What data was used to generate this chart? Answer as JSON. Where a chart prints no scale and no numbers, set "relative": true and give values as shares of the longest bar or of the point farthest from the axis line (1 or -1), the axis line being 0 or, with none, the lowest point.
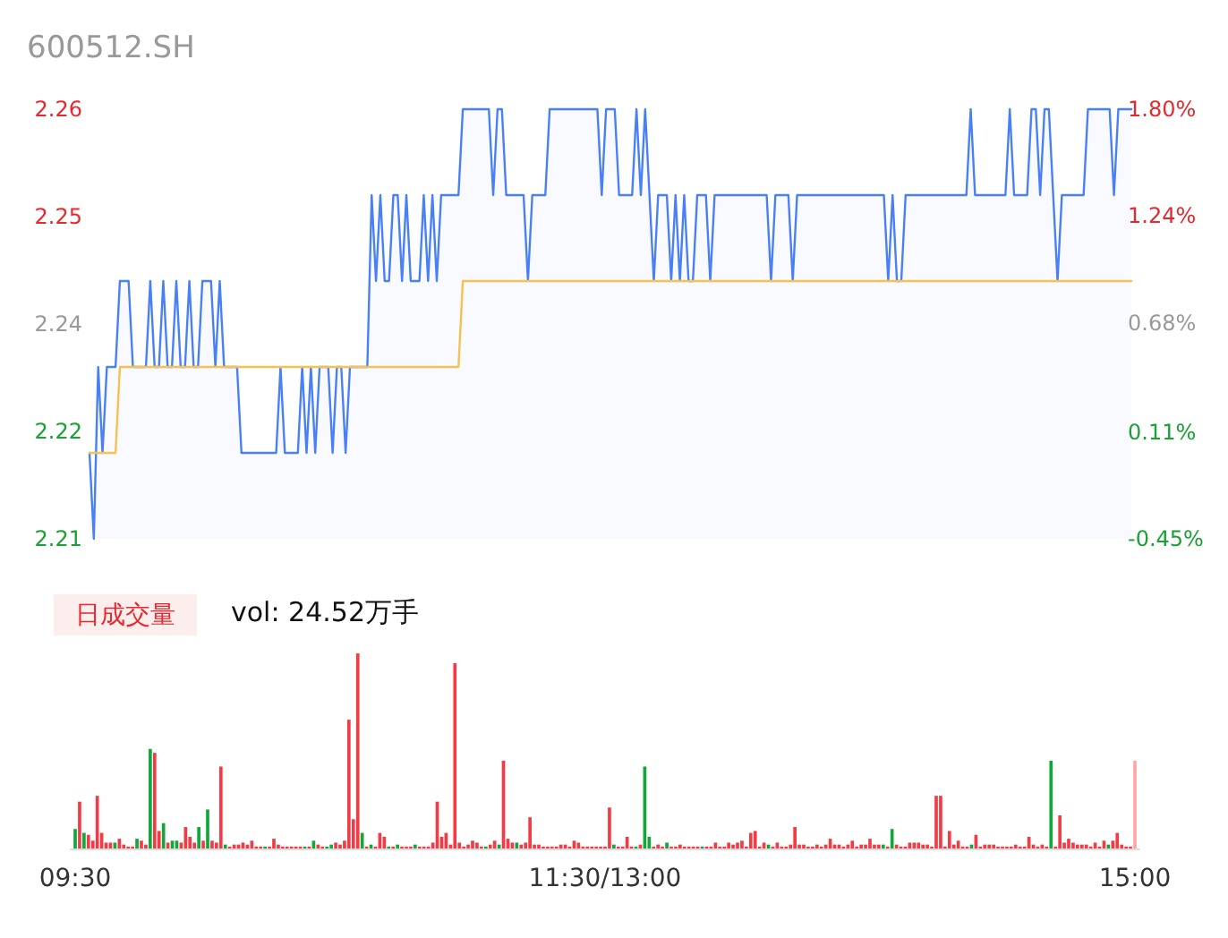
{
  "chart_data": [
    {
      "type": "area",
      "subtitle": "600512.SH",
      "ylim": [
        2.21,
        2.26
      ],
      "categories": [
        null,
        null,
        null,
        null,
        null,
        null,
        null,
        null,
        null,
        null,
        null,
        null,
        null,
        null,
        null,
        null,
        null,
        null,
        null,
        null,
        null,
        null,
        null,
        null,
        null,
        null,
        null,
        null,
        null,
        null,
        null,
        null,
        null,
        null,
        null,
        null,
        null,
        null,
        null,
        null,
        null,
        null,
        null,
        null,
        null,
        null,
        null,
        null,
        null,
        null,
        null,
        null,
        null,
        null,
        null,
        null,
        null,
        null,
        null,
        null,
        null,
        null,
        null,
        null,
        null,
        null,
        null,
        null,
        null,
        null,
        null,
        null,
        null,
        null,
        null,
        null,
        null,
        null,
        null,
        null,
        null,
        null,
        null,
        null,
        null,
        null,
        null,
        null,
        null,
        null,
        null,
        null,
        null,
        null,
        null,
        null,
        null,
        null,
        null,
        null,
        null,
        null,
        null,
        null,
        null,
        null,
        null,
        null,
        null,
        null,
        null,
        null,
        null,
        null,
        null,
        null,
        null,
        null,
        null,
        null,
        null,
        null,
        null,
        null,
        null,
        null,
        null,
        null,
        null,
        null,
        null,
        null,
        null,
        null,
        null,
        null,
        null,
        null,
        null,
        null,
        null,
        null,
        null,
        null,
        null,
        null,
        null,
        null,
        null,
        null,
        null,
        null,
        null,
        null,
        null,
        null,
        null,
        null,
        null,
        null,
        null,
        null,
        null,
        null,
        null,
        null,
        null,
        null,
        null,
        null,
        null,
        null,
        null,
        null,
        null,
        null,
        null,
        null,
        null,
        null,
        null,
        null,
        null,
        null,
        null,
        null,
        null,
        null,
        null,
        null,
        null,
        null,
        null,
        null,
        null,
        null,
        null,
        null,
        null,
        null,
        null,
        null,
        null,
        null,
        null,
        null,
        null,
        null,
        null,
        null,
        null,
        null,
        null,
        null,
        null,
        null,
        null,
        null,
        null,
        null,
        null,
        null,
        null,
        null,
        null,
        null,
        null,
        null,
        null,
        null,
        null,
        null,
        null,
        null,
        null,
        null,
        null,
        null,
        null,
        null,
        null
      ],
      "yticks": [
        {
          "value": 2.21,
          "label": "2.21"
        },
        {
          "value": 2.2225,
          "label": "2.22"
        },
        {
          "value": 2.235,
          "label": "2.24"
        },
        {
          "value": 2.2475,
          "label": "2.25"
        },
        {
          "value": 2.26,
          "label": "2.26"
        }
      ],
      "y2lim": [
        -0.45,
        1.8
      ],
      "y2ticks": [
        {
          "value": -0.45,
          "label": "-0.45%"
        },
        {
          "value": 0.11,
          "label": "0.11%"
        },
        {
          "value": 0.68,
          "label": "0.68%"
        },
        {
          "value": 1.24,
          "label": "1.24%"
        },
        {
          "value": 1.8,
          "label": "1.80%"
        }
      ],
      "series": [
        {
          "type": "area",
          "color": "#4a80f5",
          "values": [
            2.22,
            2.21,
            2.23,
            2.22,
            2.23,
            2.23,
            2.23,
            2.24,
            2.24,
            2.24,
            2.23,
            2.23,
            2.23,
            2.23,
            2.24,
            2.23,
            2.23,
            2.24,
            2.23,
            2.23,
            2.24,
            2.23,
            2.23,
            2.24,
            2.23,
            2.23,
            2.24,
            2.24,
            2.24,
            2.23,
            2.24,
            2.23,
            2.23,
            2.23,
            2.23,
            2.22,
            2.22,
            2.22,
            2.22,
            2.22,
            2.22,
            2.22,
            2.22,
            2.22,
            2.23,
            2.22,
            2.22,
            2.22,
            2.22,
            2.23,
            2.22,
            2.23,
            2.22,
            2.23,
            2.23,
            2.23,
            2.22,
            2.23,
            2.23,
            2.22,
            2.23,
            2.23,
            2.23,
            2.23,
            2.23,
            2.25,
            2.24,
            2.25,
            2.24,
            2.24,
            2.25,
            2.25,
            2.24,
            2.25,
            2.24,
            2.24,
            2.24,
            2.25,
            2.24,
            2.25,
            2.24,
            2.25,
            2.25,
            2.25,
            2.25,
            2.25,
            2.26,
            2.26,
            2.26,
            2.26,
            2.26,
            2.26,
            2.26,
            2.25,
            2.26,
            2.26,
            2.25,
            2.25,
            2.25,
            2.25,
            2.25,
            2.24,
            2.25,
            2.25,
            2.25,
            2.25,
            2.26,
            2.26,
            2.26,
            2.26,
            2.26,
            2.26,
            2.26,
            2.26,
            2.26,
            2.26,
            2.26,
            2.26,
            2.25,
            2.26,
            2.26,
            2.26,
            2.25,
            2.25,
            2.25,
            2.25,
            2.26,
            2.25,
            2.26,
            2.25,
            2.24,
            2.25,
            2.25,
            2.25,
            2.24,
            2.25,
            2.24,
            2.25,
            2.24,
            2.24,
            2.25,
            2.25,
            2.25,
            2.24,
            2.25,
            2.25,
            2.25,
            2.25,
            2.25,
            2.25,
            2.25,
            2.25,
            2.25,
            2.25,
            2.25,
            2.25,
            2.25,
            2.24,
            2.25,
            2.25,
            2.25,
            2.25,
            2.24,
            2.25,
            2.25,
            2.25,
            2.25,
            2.25,
            2.25,
            2.25,
            2.25,
            2.25,
            2.25,
            2.25,
            2.25,
            2.25,
            2.25,
            2.25,
            2.25,
            2.25,
            2.25,
            2.25,
            2.25,
            2.25,
            2.24,
            2.25,
            2.24,
            2.24,
            2.25,
            2.25,
            2.25,
            2.25,
            2.25,
            2.25,
            2.25,
            2.25,
            2.25,
            2.25,
            2.25,
            2.25,
            2.25,
            2.25,
            2.25,
            2.26,
            2.25,
            2.25,
            2.25,
            2.25,
            2.25,
            2.25,
            2.25,
            2.25,
            2.26,
            2.25,
            2.25,
            2.25,
            2.25,
            2.26,
            2.26,
            2.25,
            2.26,
            2.26,
            2.25,
            2.24,
            2.25,
            2.25,
            2.25,
            2.25,
            2.25,
            2.25,
            2.26,
            2.26,
            2.26,
            2.26,
            2.26,
            2.26,
            2.25,
            2.26,
            2.26,
            2.26,
            2.26
          ]
        },
        {
          "type": "line",
          "color": "#f7c14f",
          "values": [
            2.22,
            2.22,
            2.22,
            2.22,
            2.22,
            2.22,
            2.22,
            2.23,
            2.23,
            2.23,
            2.23,
            2.23,
            2.23,
            2.23,
            2.23,
            2.23,
            2.23,
            2.23,
            2.23,
            2.23,
            2.23,
            2.23,
            2.23,
            2.23,
            2.23,
            2.23,
            2.23,
            2.23,
            2.23,
            2.23,
            2.23,
            2.23,
            2.23,
            2.23,
            2.23,
            2.23,
            2.23,
            2.23,
            2.23,
            2.23,
            2.23,
            2.23,
            2.23,
            2.23,
            2.23,
            2.23,
            2.23,
            2.23,
            2.23,
            2.23,
            2.23,
            2.23,
            2.23,
            2.23,
            2.23,
            2.23,
            2.23,
            2.23,
            2.23,
            2.23,
            2.23,
            2.23,
            2.23,
            2.23,
            2.23,
            2.23,
            2.23,
            2.23,
            2.23,
            2.23,
            2.23,
            2.23,
            2.23,
            2.23,
            2.23,
            2.23,
            2.23,
            2.23,
            2.23,
            2.23,
            2.23,
            2.23,
            2.23,
            2.23,
            2.23,
            2.23,
            2.24,
            2.24,
            2.24,
            2.24,
            2.24,
            2.24,
            2.24,
            2.24,
            2.24,
            2.24,
            2.24,
            2.24,
            2.24,
            2.24,
            2.24,
            2.24,
            2.24,
            2.24,
            2.24,
            2.24,
            2.24,
            2.24,
            2.24,
            2.24,
            2.24,
            2.24,
            2.24,
            2.24,
            2.24,
            2.24,
            2.24,
            2.24,
            2.24,
            2.24,
            2.24,
            2.24,
            2.24,
            2.24,
            2.24,
            2.24,
            2.24,
            2.24,
            2.24,
            2.24,
            2.24,
            2.24,
            2.24,
            2.24,
            2.24,
            2.24,
            2.24,
            2.24,
            2.24,
            2.24,
            2.24,
            2.24,
            2.24,
            2.24,
            2.24,
            2.24,
            2.24,
            2.24,
            2.24,
            2.24,
            2.24,
            2.24,
            2.24,
            2.24,
            2.24,
            2.24,
            2.24,
            2.24,
            2.24,
            2.24,
            2.24,
            2.24,
            2.24,
            2.24,
            2.24,
            2.24,
            2.24,
            2.24,
            2.24,
            2.24,
            2.24,
            2.24,
            2.24,
            2.24,
            2.24,
            2.24,
            2.24,
            2.24,
            2.24,
            2.24,
            2.24,
            2.24,
            2.24,
            2.24,
            2.24,
            2.24,
            2.24,
            2.24,
            2.24,
            2.24,
            2.24,
            2.24,
            2.24,
            2.24,
            2.24,
            2.24,
            2.24,
            2.24,
            2.24,
            2.24,
            2.24,
            2.24,
            2.24,
            2.24,
            2.24,
            2.24,
            2.24,
            2.24,
            2.24,
            2.24,
            2.24,
            2.24,
            2.24,
            2.24,
            2.24,
            2.24,
            2.24,
            2.24,
            2.24,
            2.24,
            2.24,
            2.24,
            2.24,
            2.24,
            2.24,
            2.24,
            2.24,
            2.24,
            2.24,
            2.24,
            2.24,
            2.24,
            2.24,
            2.24,
            2.24,
            2.24,
            2.24,
            2.24,
            2.24,
            2.24,
            2.24
          ]
        }
      ]
    },
    {
      "type": "bar",
      "relative": true,
      "tick_labels": "x",
      "categories": [
        "09:30",
        null,
        null,
        null,
        null,
        null,
        null,
        null,
        null,
        null,
        null,
        null,
        null,
        null,
        null,
        null,
        null,
        null,
        null,
        null,
        null,
        null,
        null,
        null,
        null,
        null,
        null,
        null,
        null,
        null,
        null,
        null,
        null,
        null,
        null,
        null,
        null,
        null,
        null,
        null,
        null,
        null,
        null,
        null,
        null,
        null,
        null,
        null,
        null,
        null,
        null,
        null,
        null,
        null,
        null,
        null,
        null,
        null,
        null,
        null,
        null,
        null,
        null,
        null,
        null,
        null,
        null,
        null,
        null,
        null,
        null,
        null,
        null,
        null,
        null,
        null,
        null,
        null,
        null,
        null,
        null,
        null,
        null,
        null,
        null,
        null,
        null,
        null,
        null,
        null,
        null,
        null,
        null,
        null,
        null,
        null,
        null,
        null,
        null,
        null,
        null,
        null,
        null,
        null,
        null,
        null,
        null,
        null,
        null,
        null,
        null,
        null,
        null,
        null,
        null,
        null,
        null,
        null,
        null,
        null,
        "11:30/13:00",
        null,
        null,
        null,
        null,
        null,
        null,
        null,
        null,
        null,
        null,
        null,
        null,
        null,
        null,
        null,
        null,
        null,
        null,
        null,
        null,
        null,
        null,
        null,
        null,
        null,
        null,
        null,
        null,
        null,
        null,
        null,
        null,
        null,
        null,
        null,
        null,
        null,
        null,
        null,
        null,
        null,
        null,
        null,
        null,
        null,
        null,
        null,
        null,
        null,
        null,
        null,
        null,
        null,
        null,
        null,
        null,
        null,
        null,
        null,
        null,
        null,
        null,
        null,
        null,
        null,
        null,
        null,
        null,
        null,
        null,
        null,
        null,
        null,
        null,
        null,
        null,
        null,
        null,
        null,
        null,
        null,
        null,
        null,
        null,
        null,
        null,
        null,
        null,
        null,
        null,
        null,
        null,
        null,
        null,
        null,
        null,
        null,
        null,
        null,
        null,
        null,
        null,
        null,
        null,
        null,
        null,
        null,
        null,
        null,
        null,
        null,
        null,
        null,
        null,
        null,
        null,
        null,
        null,
        null,
        "15:00"
      ],
      "annotations": [
        "日成交量",
        "vol: 24.52万手"
      ],
      "values": [
        0.1,
        0.24,
        0.08,
        0.07,
        0.04,
        0.27,
        0.08,
        0.03,
        0.03,
        0.03,
        0.05,
        0.02,
        0.01,
        0.01,
        0.05,
        0.04,
        0.02,
        0.51,
        0.49,
        0.09,
        0.13,
        0.03,
        0.04,
        0.04,
        0.03,
        0.11,
        0.06,
        0.03,
        0.11,
        0.04,
        0.2,
        0.04,
        0.03,
        0.42,
        0.02,
        0.01,
        0.02,
        0.02,
        0.03,
        0.02,
        0.04,
        0.01,
        0.01,
        0.01,
        0.01,
        0.05,
        0.02,
        0.01,
        0.01,
        0.01,
        0.01,
        0.01,
        0.01,
        0.01,
        0.04,
        0.02,
        0.01,
        0.01,
        0.02,
        0.03,
        0.02,
        0.04,
        0.66,
        0.15,
        1,
        0.08,
        0.01,
        0.02,
        0.01,
        0.08,
        0.06,
        0.01,
        0.01,
        0.02,
        0.01,
        0.01,
        0.01,
        0.02,
        0.01,
        0.01,
        0.01,
        0.03,
        0.24,
        0.06,
        0.08,
        0.02,
        0.95,
        0.03,
        0.01,
        0.02,
        0.04,
        0.03,
        0.01,
        0.01,
        0.02,
        0.04,
        0.02,
        0.45,
        0.05,
        0.03,
        0.03,
        0.02,
        0.03,
        0.16,
        0.02,
        0.02,
        0.01,
        0.01,
        0.01,
        0.01,
        0.02,
        0.02,
        0.01,
        0.04,
        0.03,
        0.01,
        0.01,
        0.01,
        0.01,
        0.01,
        0.01,
        0.21,
        0.02,
        0.01,
        0.01,
        0.06,
        0.01,
        0.01,
        0.02,
        0.42,
        0.06,
        0.01,
        0.02,
        0.01,
        0.03,
        0.01,
        0.01,
        0.02,
        0.01,
        0.01,
        0.01,
        0.01,
        0.01,
        0.01,
        0.01,
        0.03,
        0.01,
        0.01,
        0.03,
        0.02,
        0.03,
        0.04,
        0.01,
        0.08,
        0.09,
        0.01,
        0.03,
        0.02,
        0.01,
        0.03,
        0.01,
        0.01,
        0.02,
        0.11,
        0.02,
        0.02,
        0.01,
        0.01,
        0.02,
        0.01,
        0.02,
        0.05,
        0.02,
        0.02,
        0.01,
        0.02,
        0.04,
        0.01,
        0.02,
        0.02,
        0.05,
        0.02,
        0.02,
        0.02,
        0.01,
        0.1,
        0.02,
        0.01,
        0.01,
        0.03,
        0.03,
        0.03,
        0.02,
        0.02,
        0.01,
        0.27,
        0.27,
        0.01,
        0.09,
        0.02,
        0.04,
        0.01,
        0.01,
        0.02,
        0.07,
        0.01,
        0.02,
        0.02,
        0.02,
        0.01,
        0.01,
        0.01,
        0.01,
        0.02,
        0.01,
        0.01,
        0.06,
        0.02,
        0.01,
        0.02,
        0.01,
        0.45,
        0.01,
        0.17,
        0.03,
        0.05,
        0.03,
        0.02,
        0.02,
        0.02,
        0.01,
        0.03,
        0.01,
        0.04,
        0.02,
        0.04,
        0.08,
        0.02,
        0.01,
        0.01,
        0.45
      ],
      "colors": [
        "#14a53c",
        "#f23c45",
        "#14a53c",
        "#f23c45",
        "#f23c45",
        "#f23c45",
        "#f23c45",
        "#f23c45",
        "#f23c45",
        "#14a53c",
        "#f23c45",
        "#f23c45",
        "#f23c45",
        "#f23c45",
        "#14a53c",
        "#f23c45",
        "#f23c45",
        "#14a53c",
        "#f23c45",
        "#f23c45",
        "#14a53c",
        "#f23c45",
        "#14a53c",
        "#14a53c",
        "#f23c45",
        "#f23c45",
        "#f23c45",
        "#f23c45",
        "#14a53c",
        "#f23c45",
        "#14a53c",
        "#f23c45",
        "#f23c45",
        "#f23c45",
        "#14a53c",
        "#f23c45",
        "#f23c45",
        "#f23c45",
        "#f23c45",
        "#f23c45",
        "#f23c45",
        "#f23c45",
        "#f23c45",
        "#14a53c",
        "#f23c45",
        "#f23c45",
        "#f23c45",
        "#f23c45",
        "#f23c45",
        "#f23c45",
        "#f23c45",
        "#f23c45",
        "#14a53c",
        "#f23c45",
        "#14a53c",
        "#f23c45",
        "#f23c45",
        "#14a53c",
        "#14a53c",
        "#f23c45",
        "#f23c45",
        "#f23c45",
        "#f23c45",
        "#f23c45",
        "#f23c45",
        "#14a53c",
        "#f23c45",
        "#14a53c",
        "#f23c45",
        "#f23c45",
        "#f23c45",
        "#14a53c",
        "#f23c45",
        "#14a53c",
        "#f23c45",
        "#f23c45",
        "#f23c45",
        "#14a53c",
        "#f23c45",
        "#f23c45",
        "#f23c45",
        "#f23c45",
        "#f23c45",
        "#f23c45",
        "#f23c45",
        "#f23c45",
        "#f23c45",
        "#f23c45",
        "#f23c45",
        "#f23c45",
        "#f23c45",
        "#f23c45",
        "#f23c45",
        "#14a53c",
        "#f23c45",
        "#f23c45",
        "#14a53c",
        "#f23c45",
        "#f23c45",
        "#f23c45",
        "#14a53c",
        "#f23c45",
        "#f23c45",
        "#f23c45",
        "#f23c45",
        "#f23c45",
        "#f23c45",
        "#f23c45",
        "#f23c45",
        "#f23c45",
        "#f23c45",
        "#f23c45",
        "#f23c45",
        "#f23c45",
        "#f23c45",
        "#f23c45",
        "#f23c45",
        "#f23c45",
        "#f23c45",
        "#f23c45",
        "#f23c45",
        "#f23c45",
        "#14a53c",
        "#f23c45",
        "#f23c45",
        "#f23c45",
        "#f23c45",
        "#14a53c",
        "#f23c45",
        "#14a53c",
        "#14a53c",
        "#f23c45",
        "#f23c45",
        "#f23c45",
        "#14a53c",
        "#f23c45",
        "#f23c45",
        "#f23c45",
        "#f23c45",
        "#f23c45",
        "#f23c45",
        "#f23c45",
        "#14a53c",
        "#f23c45",
        "#f23c45",
        "#f23c45",
        "#f23c45",
        "#f23c45",
        "#f23c45",
        "#f23c45",
        "#f23c45",
        "#f23c45",
        "#f23c45",
        "#f23c45",
        "#f23c45",
        "#f23c45",
        "#f23c45",
        "#14a53c",
        "#f23c45",
        "#f23c45",
        "#f23c45",
        "#f23c45",
        "#f23c45",
        "#f23c45",
        "#f23c45",
        "#f23c45",
        "#f23c45",
        "#f23c45",
        "#f23c45",
        "#f23c45",
        "#f23c45",
        "#f23c45",
        "#f23c45",
        "#f23c45",
        "#f23c45",
        "#f23c45",
        "#f23c45",
        "#f23c45",
        "#f23c45",
        "#f23c45",
        "#f23c45",
        "#f23c45",
        "#f23c45",
        "#14a53c",
        "#f23c45",
        "#14a53c",
        "#f23c45",
        "#f23c45",
        "#f23c45",
        "#f23c45",
        "#f23c45",
        "#f23c45",
        "#f23c45",
        "#f23c45",
        "#f23c45",
        "#f23c45",
        "#f23c45",
        "#f23c45",
        "#f23c45",
        "#f23c45",
        "#f23c45",
        "#f23c45",
        "#f23c45",
        "#14a53c",
        "#f23c45",
        "#f23c45",
        "#f23c45",
        "#f23c45",
        "#f23c45",
        "#f23c45",
        "#f23c45",
        "#f23c45",
        "#f23c45",
        "#f23c45",
        "#f23c45",
        "#f23c45",
        "#f23c45",
        "#f23c45",
        "#f23c45",
        "#f23c45",
        "#f23c45",
        "#14a53c",
        "#f23c45",
        "#f23c45",
        "#f23c45",
        "#f23c45",
        "#f23c45",
        "#f23c45",
        "#f23c45",
        "#f23c45",
        "#f23c45",
        "#f23c45",
        "#f23c45",
        "#f23c45",
        "#14a53c",
        "#f23c45",
        "#f23c45",
        "#f23c45",
        "#f23c45",
        "#f23c45",
        "#ffa5a5"
      ]
    }
  ]
}
